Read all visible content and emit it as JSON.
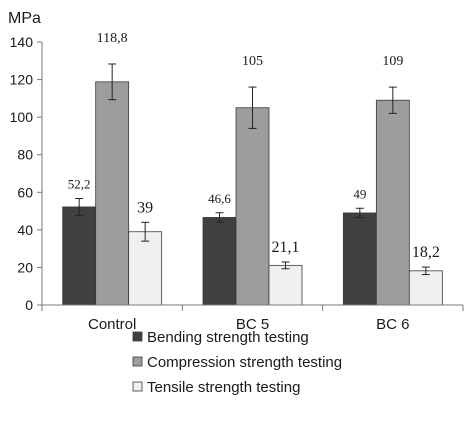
{
  "chart_data": {
    "type": "bar",
    "ylabel": "MPa",
    "ylim": [
      0,
      140
    ],
    "yticks": [
      0,
      20,
      40,
      60,
      80,
      100,
      120,
      140
    ],
    "grid": false,
    "legend_position": "bottom",
    "categories": [
      "Control",
      "BC 5",
      "BC 6"
    ],
    "series": [
      {
        "name": "Bending strength testing",
        "color": "#404040",
        "values": [
          52.2,
          46.6,
          49
        ],
        "errors": [
          4.5,
          2.5,
          2.5
        ],
        "labels": [
          "52,2",
          "46,6",
          "49"
        ]
      },
      {
        "name": "Compression strength testing",
        "color": "#9d9d9d",
        "values": [
          118.8,
          105,
          109
        ],
        "errors": [
          9.5,
          11,
          7
        ],
        "labels": [
          "118,8",
          "105",
          "109"
        ]
      },
      {
        "name": "Tensile strength testing",
        "color": "#f0f0f0",
        "values": [
          39,
          21.1,
          18.2
        ],
        "errors": [
          5,
          1.8,
          2
        ],
        "labels": [
          "39",
          "21,1",
          "18,2"
        ]
      }
    ]
  }
}
